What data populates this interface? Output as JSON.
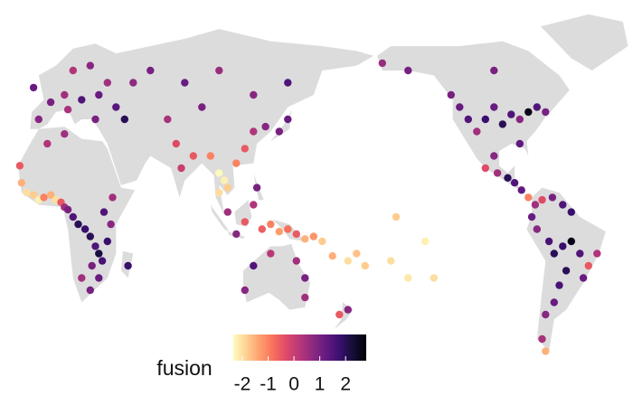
{
  "chart_data": {
    "type": "scatter",
    "legend_title": "fusion",
    "clim": [
      -2.35,
      2.8
    ],
    "cticks": [
      {
        "value": -2,
        "label": "-2"
      },
      {
        "value": -1,
        "label": "-1"
      },
      0,
      1,
      2
    ],
    "colormap": [
      "#fcfdbf",
      "#fecf92",
      "#fe9f6d",
      "#f7705c",
      "#de4968",
      "#b73779",
      "#8c2981",
      "#641a80",
      "#3b0f70",
      "#140e36",
      "#000004"
    ],
    "land_color": "#dcdcdc",
    "x": [
      -15,
      -12,
      -8,
      -5,
      -2,
      2,
      5,
      8,
      10,
      12,
      15,
      18,
      22,
      25,
      28,
      30,
      32,
      26,
      20,
      30,
      35,
      37,
      33,
      38,
      -16,
      0,
      10,
      25,
      47,
      -5,
      2,
      10,
      15,
      25,
      20,
      30,
      35,
      40,
      45,
      50,
      -8,
      12,
      28,
      60,
      80,
      100,
      120,
      90,
      70,
      75,
      78,
      85,
      95,
      100,
      103,
      105,
      100,
      110,
      115,
      120,
      127,
      135,
      140,
      140,
      105,
      110,
      115,
      120,
      122,
      125,
      130,
      135,
      140,
      145,
      150,
      155,
      160,
      166,
      175,
      180,
      -175,
      -160,
      -150,
      -135,
      -140,
      -157,
      145,
      150,
      120,
      130,
      115,
      150,
      170,
      175,
      -125,
      -120,
      -115,
      -110,
      -105,
      -100,
      -95,
      -90,
      -85,
      -80,
      -75,
      -70,
      -100,
      -85,
      -100,
      -105,
      -98,
      -92,
      -88,
      -84,
      -80,
      -76,
      -72,
      -66,
      -60,
      -55,
      -78,
      -75,
      -68,
      -65,
      -60,
      -55,
      -50,
      -45,
      -40,
      -48,
      -58,
      -62,
      -65,
      -70,
      -72,
      -70,
      -150,
      -165
    ],
    "y": [
      14,
      10,
      9,
      7,
      8,
      9,
      7,
      6,
      4,
      3,
      0,
      -3,
      -5,
      -8,
      -12,
      -15,
      -18,
      -20,
      -25,
      -25,
      -10,
      -3,
      2,
      8,
      21,
      30,
      34,
      -30,
      -20,
      40,
      47,
      50,
      60,
      62,
      48,
      50,
      55,
      45,
      40,
      55,
      53,
      44,
      40,
      60,
      55,
      60,
      50,
      45,
      40,
      30,
      20,
      25,
      25,
      18,
      15,
      12,
      10,
      22,
      28,
      35,
      37,
      35,
      40,
      55,
      2,
      -7,
      -2,
      5,
      12,
      -5,
      -3,
      -6,
      -5,
      -7,
      -9,
      -8,
      -10,
      -16,
      -18,
      -15,
      -20,
      -18,
      -25,
      -25,
      -10,
      0,
      -18,
      -25,
      -20,
      -15,
      -30,
      -33,
      -40,
      -38,
      50,
      45,
      40,
      35,
      40,
      45,
      38,
      42,
      40,
      43,
      45,
      43,
      60,
      30,
      25,
      20,
      18,
      16,
      14,
      11,
      8,
      5,
      7,
      8,
      5,
      2,
      0,
      -5,
      -10,
      -15,
      -12,
      -10,
      -15,
      -20,
      -15,
      -25,
      -22,
      -28,
      -35,
      -40,
      -50,
      -55,
      60,
      63
    ],
    "values": [
      -1.5,
      -2,
      -1.8,
      -2.2,
      -1,
      -1.5,
      -2,
      -0.5,
      0.5,
      1,
      1.5,
      2,
      1.8,
      2,
      1.5,
      2.2,
      1.6,
      1,
      0.5,
      1.2,
      1.8,
      0.8,
      1.5,
      0.5,
      -0.5,
      0.3,
      0.5,
      1,
      1.8,
      0.8,
      1,
      0.5,
      0.3,
      0.8,
      1.5,
      1.2,
      0.5,
      1.4,
      2,
      0.7,
      1.2,
      0.4,
      1,
      1,
      1.2,
      0.6,
      0.8,
      1,
      0.4,
      -0.3,
      0,
      -0.5,
      -1,
      -2.3,
      -2.2,
      -1.8,
      -2,
      -1,
      -0.5,
      0.3,
      0.8,
      1,
      1.2,
      1.5,
      0.5,
      0.8,
      -0.5,
      0.3,
      1,
      -0.6,
      -1,
      -1.3,
      -0.8,
      -0.5,
      -1.5,
      -1.2,
      -1.8,
      -1.5,
      -2,
      -1.7,
      -1.8,
      -2,
      -2.1,
      -2,
      -2.2,
      -1.8,
      0.5,
      1,
      1.5,
      0.2,
      0.8,
      0.5,
      -0.5,
      0.8,
      1,
      1.2,
      1.5,
      0.5,
      1.8,
      1.2,
      2,
      1.5,
      0.8,
      2.6,
      1.5,
      1,
      1,
      1.3,
      0.8,
      -0.3,
      0.5,
      2,
      1.5,
      1.3,
      -1,
      0.5,
      -0.3,
      1,
      1.5,
      1.8,
      1.2,
      0.8,
      1.6,
      2,
      1.8,
      2.6,
      1.5,
      -0.5,
      0.3,
      1.2,
      2,
      1.6,
      1.2,
      0.8,
      0.4,
      -1.5,
      1,
      0.6
    ]
  }
}
